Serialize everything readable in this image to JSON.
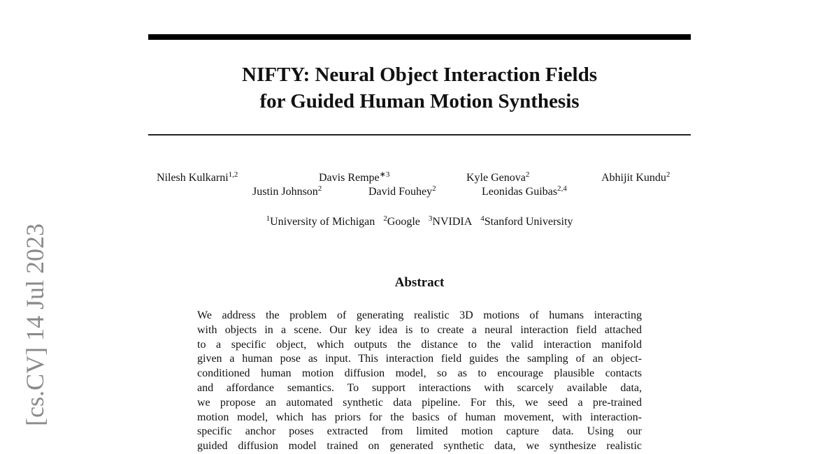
{
  "arxiv_stamp": "[cs.CV] 14 Jul 2023",
  "title_lines": [
    "NIFTY: Neural Object Interaction Fields",
    "for Guided Human Motion Synthesis"
  ],
  "authors": [
    {
      "name": "Nilesh Kulkarni",
      "sup": "1,2"
    },
    {
      "name": "Davis Rempe",
      "sup": "∗3"
    },
    {
      "name": "Kyle Genova",
      "sup": "2"
    },
    {
      "name": "Abhijit Kundu",
      "sup": "2"
    },
    {
      "name": "Justin Johnson",
      "sup": "2"
    },
    {
      "name": "David Fouhey",
      "sup": "2"
    },
    {
      "name": "Leonidas Guibas",
      "sup": "2,4"
    }
  ],
  "affiliations": [
    {
      "sup": "1",
      "name": "University of Michigan"
    },
    {
      "sup": "2",
      "name": "Google"
    },
    {
      "sup": "3",
      "name": "NVIDIA"
    },
    {
      "sup": "4",
      "name": "Stanford University"
    }
  ],
  "abstract": {
    "heading": "Abstract",
    "lines": [
      "We address the problem of generating realistic 3D motions of humans interacting",
      "with objects in a scene. Our key idea is to create a neural interaction field attached",
      "to a specific object, which outputs the distance to the valid interaction manifold",
      "given a human pose as input. This interaction field guides the sampling of an object-",
      "conditioned human motion diffusion model, so as to encourage plausible contacts",
      "and affordance semantics. To support interactions with scarcely available data,",
      "we propose an automated synthetic data pipeline. For this, we seed a pre-trained",
      "motion model, which has priors for the basics of human movement, with interaction-",
      "specific anchor poses extracted from limited motion capture data. Using our",
      "guided diffusion model trained on generated synthetic data, we synthesize realistic"
    ]
  }
}
